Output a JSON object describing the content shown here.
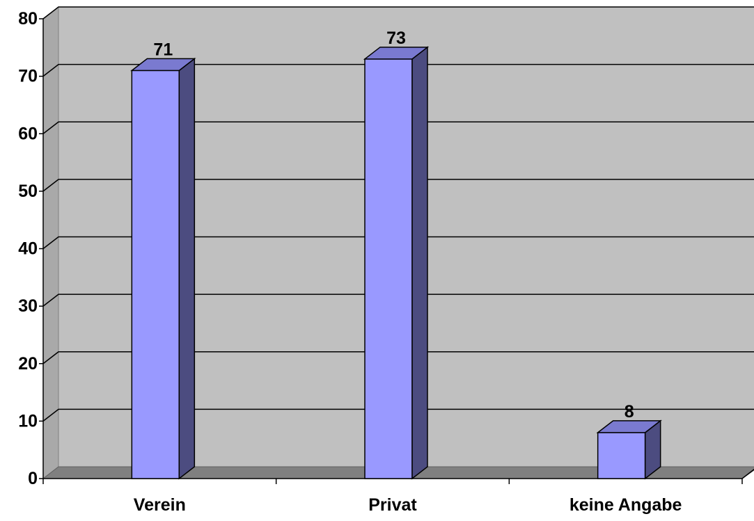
{
  "chart_data": {
    "type": "bar",
    "style": "3d-column",
    "categories": [
      "Verein",
      "Privat",
      "keine Angabe"
    ],
    "values": [
      71,
      73,
      8
    ],
    "data_labels": [
      "71",
      "73",
      "8"
    ],
    "y_ticks": [
      "0",
      "10",
      "20",
      "30",
      "40",
      "50",
      "60",
      "70",
      "80"
    ],
    "ylim": [
      0,
      80
    ],
    "grid": true,
    "legend": "none",
    "colors": {
      "bar_front": "#9999ff",
      "bar_side": "#4c4c80",
      "bar_top": "#7a7ad0",
      "wall": "#c0c0c0",
      "floor": "#808080",
      "gridline": "#000000"
    }
  }
}
